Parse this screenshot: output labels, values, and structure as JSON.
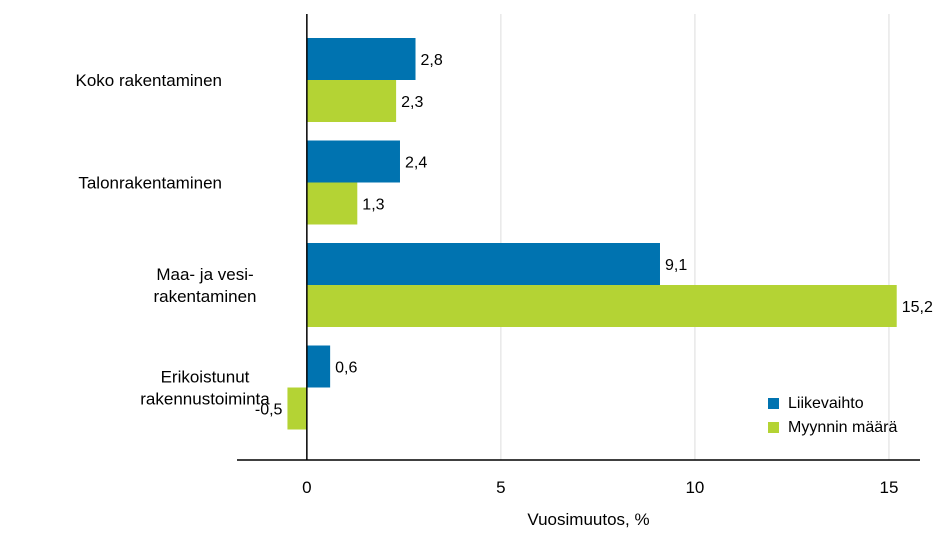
{
  "chart_data": {
    "type": "bar",
    "orientation": "horizontal",
    "categories": [
      [
        "Koko rakentaminen"
      ],
      [
        "Talonrakentaminen"
      ],
      [
        "Maa- ja vesi-",
        "rakentaminen"
      ],
      [
        "Erikoistunut",
        "rakennustoiminta"
      ]
    ],
    "series": [
      {
        "name": "Liikevaihto",
        "color": "#0073b0",
        "values": [
          2.8,
          2.4,
          9.1,
          0.6
        ],
        "labels": [
          "2,8",
          "2,4",
          "9,1",
          "0,6"
        ]
      },
      {
        "name": "Myynnin määrä",
        "color": "#b4d334",
        "values": [
          2.3,
          1.3,
          15.2,
          -0.5
        ],
        "labels": [
          "2,3",
          "1,3",
          "15,2",
          "-0,5"
        ]
      }
    ],
    "xlabel": "Vuosimuutos, %",
    "xlim": [
      -1.8,
      15.8
    ],
    "xticks": [
      0,
      5,
      10,
      15
    ],
    "xtick_labels": [
      "0",
      "5",
      "10",
      "15"
    ],
    "grid": "vertical",
    "legend_position": "bottom-right"
  }
}
